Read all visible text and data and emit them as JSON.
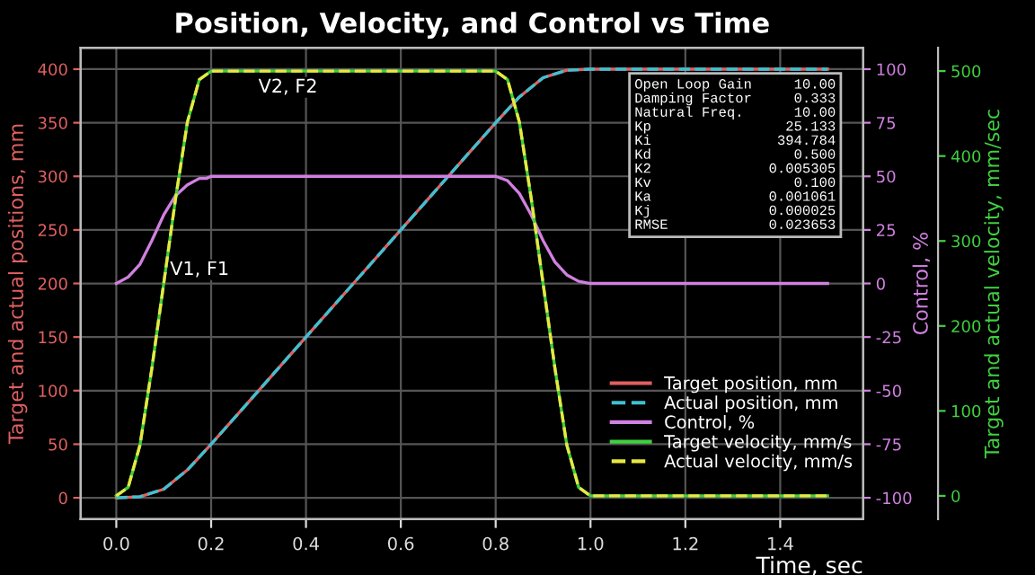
{
  "chart_data": {
    "type": "line",
    "title": "Position, Velocity, and Control vs Time",
    "xlabel": "Time, sec",
    "ylabel": "Target and actual positions, mm",
    "y2label": "Control, %",
    "y3label": "Target and actual velocity, mm/sec",
    "xlim": [
      -0.075,
      1.575
    ],
    "xticks": [
      {
        "value": 0,
        "label": "0.0"
      },
      0.2,
      0.4,
      0.6,
      0.8,
      {
        "value": 1,
        "label": "1.0"
      },
      1.2,
      1.4
    ],
    "ylim": [
      -20,
      420
    ],
    "yticks": [
      0,
      50,
      100,
      150,
      200,
      250,
      300,
      350,
      400
    ],
    "y2lim": [
      -110,
      110
    ],
    "y2ticks": [
      -100,
      -75,
      -50,
      -25,
      0,
      25,
      50,
      75,
      100
    ],
    "y3lim": [
      -27.5,
      527.5
    ],
    "y3ticks": [
      0,
      100,
      200,
      300,
      400,
      500
    ],
    "grid": true,
    "legend": "bottom right",
    "series": [
      {
        "name": "Target position, mm",
        "color": "#e06060",
        "line_style": "solid",
        "x": [
          0,
          0.05,
          0.1,
          0.15,
          0.2,
          0.3,
          0.4,
          0.5,
          0.6,
          0.7,
          0.8,
          0.85,
          0.9,
          0.95,
          1.0,
          1.5
        ],
        "values": [
          0,
          1,
          8,
          26,
          50,
          100,
          150,
          200,
          250,
          300,
          350,
          374,
          392,
          399,
          400,
          400
        ]
      },
      {
        "name": "Actual position, mm",
        "color": "#40c0d0",
        "line_style": "dashed",
        "x": [
          0,
          0.05,
          0.1,
          0.15,
          0.2,
          0.3,
          0.4,
          0.5,
          0.6,
          0.7,
          0.8,
          0.85,
          0.9,
          0.95,
          1.0,
          1.5
        ],
        "values": [
          0,
          1,
          8,
          26,
          50,
          100,
          150,
          200,
          250,
          300,
          350,
          374,
          392,
          399,
          400,
          400
        ]
      },
      {
        "name": "Control, %",
        "color": "#d080e0",
        "line_style": "solid",
        "axis": "y2",
        "x": [
          0,
          0.025,
          0.05,
          0.075,
          0.1,
          0.125,
          0.15,
          0.175,
          0.19,
          0.2,
          0.5,
          0.8,
          0.825,
          0.85,
          0.875,
          0.9,
          0.925,
          0.95,
          0.975,
          1.0,
          1.5
        ],
        "values": [
          0,
          3,
          9,
          20,
          32,
          41,
          46,
          49,
          49,
          50,
          50,
          50,
          48,
          42,
          32,
          20,
          10,
          4,
          1,
          0,
          0
        ]
      },
      {
        "name": "Target velocity, mm/s",
        "color": "#40d040",
        "line_style": "solid",
        "axis": "y3",
        "x": [
          0,
          0.025,
          0.05,
          0.075,
          0.1,
          0.125,
          0.15,
          0.175,
          0.2,
          0.8,
          0.825,
          0.85,
          0.875,
          0.9,
          0.925,
          0.95,
          0.975,
          1.0,
          1.5
        ],
        "values": [
          0,
          10,
          60,
          150,
          250,
          350,
          440,
          490,
          500,
          500,
          490,
          440,
          350,
          250,
          150,
          60,
          10,
          0,
          0
        ]
      },
      {
        "name": "Actual velocity, mm/s",
        "color": "#e8e840",
        "line_style": "dashed",
        "axis": "y3",
        "x": [
          0,
          0.025,
          0.05,
          0.075,
          0.1,
          0.125,
          0.15,
          0.175,
          0.2,
          0.8,
          0.825,
          0.85,
          0.875,
          0.9,
          0.925,
          0.95,
          0.975,
          1.0,
          1.5
        ],
        "values": [
          0,
          10,
          60,
          150,
          250,
          350,
          440,
          490,
          500,
          500,
          490,
          440,
          350,
          250,
          150,
          60,
          10,
          0,
          0
        ]
      }
    ],
    "annotations": [
      "V1, F1",
      "V2, F2",
      "Open Loop Gain 10.00",
      "Damping Factor 0.333",
      "Natural Freq. 10.00",
      "Kp 25.133",
      "Ki 394.784",
      "Kd 0.500",
      "K2 0.005305",
      "Kv 0.100",
      "Ka 0.001061",
      "Kj 0.000025",
      "RMSE 0.023653"
    ]
  }
}
